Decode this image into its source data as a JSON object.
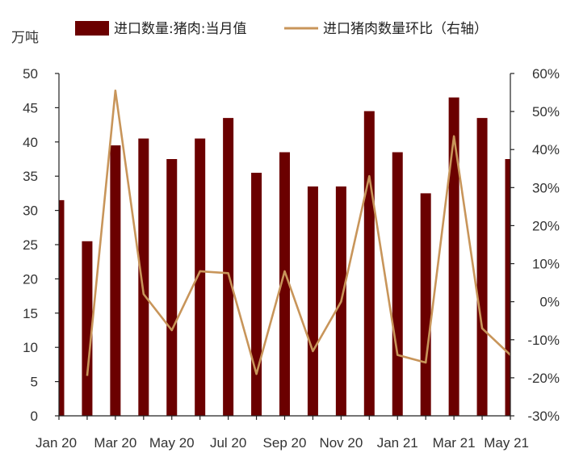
{
  "chart_data": {
    "type": "bar+line",
    "title": "",
    "unit_left": "万吨",
    "categories": [
      "Jan 20",
      "Feb 20",
      "Mar 20",
      "Apr 20",
      "May 20",
      "Jun 20",
      "Jul 20",
      "Aug 20",
      "Sep 20",
      "Oct 20",
      "Nov 20",
      "Dec 20",
      "Jan 21",
      "Feb 21",
      "Mar 21",
      "Apr 21",
      "May 21"
    ],
    "x_tick_labels": [
      "Jan 20",
      "Mar 20",
      "May 20",
      "Jul 20",
      "Sep 20",
      "Nov 20",
      "Jan 21",
      "Mar 21",
      "May 21"
    ],
    "series": [
      {
        "name": "进口数量:猪肉:当月值",
        "type": "bar",
        "axis": "left",
        "color": "#6b0000",
        "values": [
          31.5,
          25.5,
          39.5,
          40.5,
          37.5,
          40.5,
          43.5,
          35.5,
          38.5,
          33.5,
          33.5,
          44.5,
          38.5,
          32.5,
          46.5,
          43.5,
          37.5
        ]
      },
      {
        "name": "进口猪肉数量环比（右轴）",
        "type": "line",
        "axis": "right",
        "color": "#c8955a",
        "values": [
          null,
          -19.5,
          55.5,
          2,
          -7.5,
          8,
          7.5,
          -19,
          8,
          -13,
          0,
          33,
          -14,
          -16,
          43.5,
          -7,
          -14
        ]
      }
    ],
    "y_left": {
      "min": 0,
      "max": 50,
      "ticks": [
        0,
        5,
        10,
        15,
        20,
        25,
        30,
        35,
        40,
        45,
        50
      ]
    },
    "y_right": {
      "min": -30,
      "max": 60,
      "ticks": [
        -30,
        -20,
        -10,
        0,
        10,
        20,
        30,
        40,
        50,
        60
      ],
      "tick_labels": [
        "-30%",
        "-20%",
        "-10%",
        "0%",
        "10%",
        "20%",
        "30%",
        "40%",
        "50%",
        "60%"
      ]
    },
    "legend_position": "top",
    "grid": false
  }
}
